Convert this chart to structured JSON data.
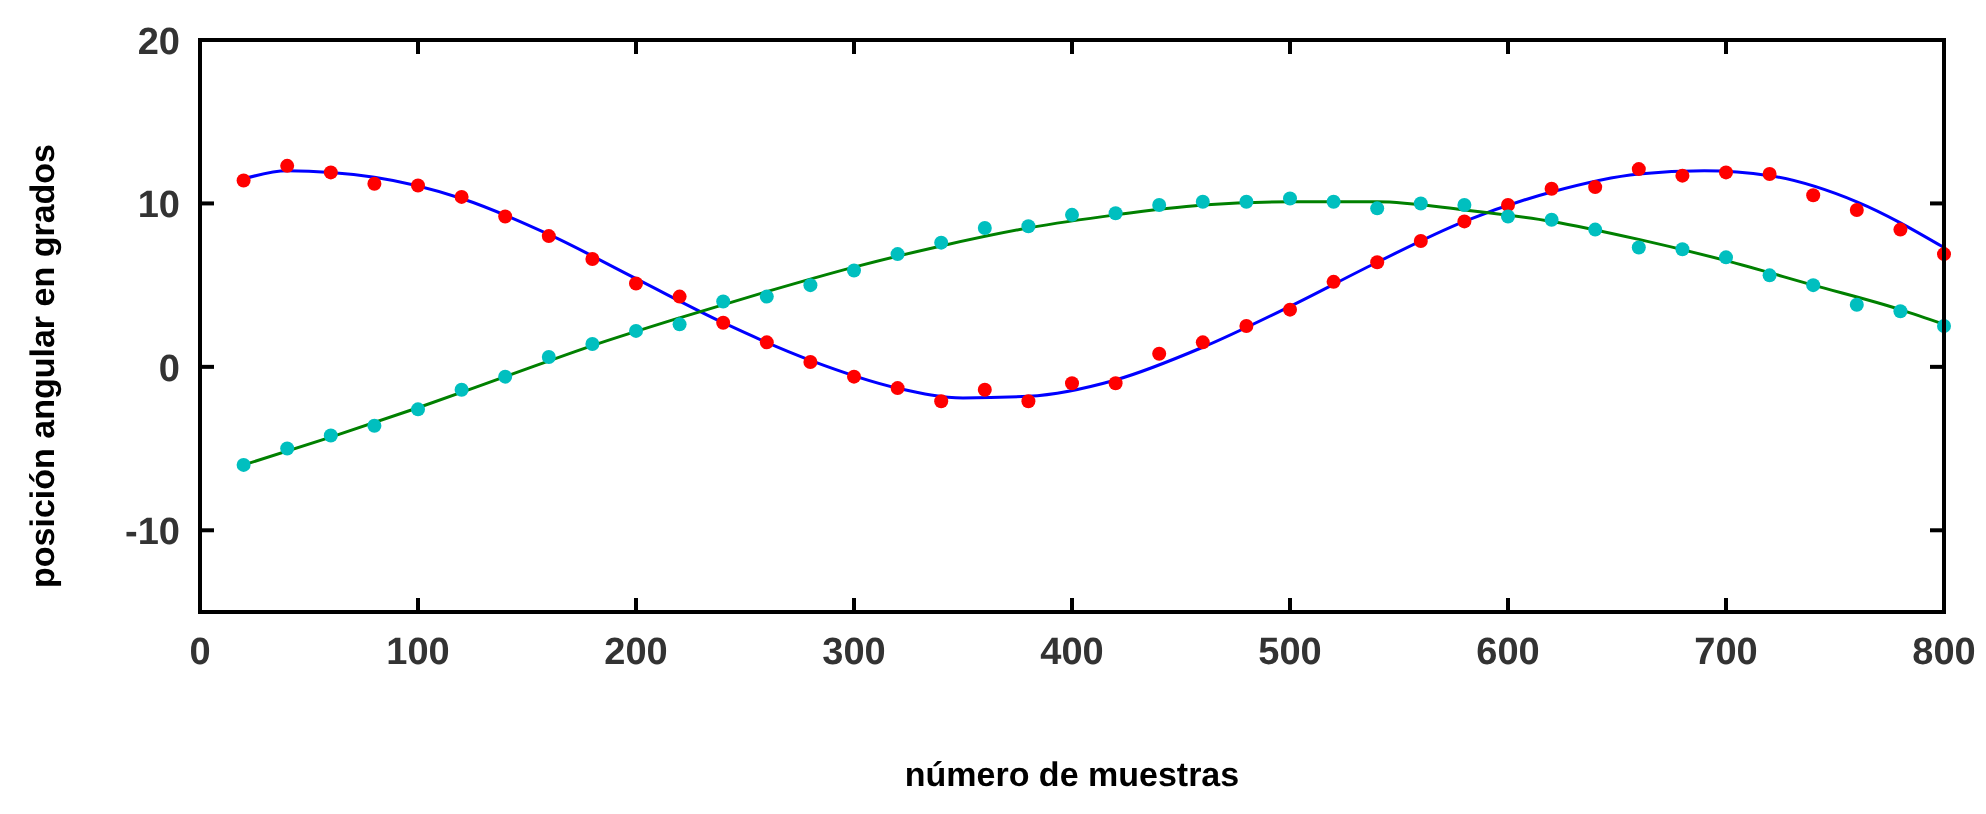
{
  "chart_data": {
    "type": "scatter",
    "xlabel": "número de muestras",
    "ylabel": "posición angular en grados",
    "xlim": [
      0,
      800
    ],
    "ylim": [
      -15,
      20
    ],
    "xticks": [
      0,
      100,
      200,
      300,
      400,
      500,
      600,
      700,
      800
    ],
    "yticks": [
      -10,
      0,
      10,
      20
    ],
    "grid": false,
    "series": [
      {
        "type": "line",
        "color": "#0000ff",
        "marker": "none",
        "x": [
          20,
          40,
          80,
          120,
          160,
          200,
          240,
          280,
          320,
          350,
          380,
          420,
          460,
          500,
          540,
          580,
          620,
          660,
          690,
          720,
          760,
          800
        ],
        "values": [
          11.5,
          12,
          11.6,
          10.3,
          8.1,
          5.4,
          2.7,
          0.4,
          -1.3,
          -1.9,
          -1.8,
          -0.8,
          1.2,
          3.7,
          6.4,
          8.9,
          10.7,
          11.8,
          12,
          11.7,
          10.1,
          7.3
        ]
      },
      {
        "type": "line",
        "color": "#008000",
        "marker": "none",
        "x": [
          20,
          60,
          100,
          140,
          180,
          220,
          260,
          300,
          340,
          380,
          420,
          460,
          500,
          540,
          580,
          620,
          660,
          700,
          740,
          780,
          800
        ],
        "values": [
          -6,
          -4.3,
          -2.5,
          -0.6,
          1.3,
          3,
          4.6,
          6.1,
          7.4,
          8.5,
          9.3,
          9.9,
          10.1,
          10.1,
          9.6,
          8.9,
          7.8,
          6.5,
          5,
          3.5,
          2.6
        ]
      },
      {
        "color": "#ff0000",
        "marker": "circle",
        "x": [
          20,
          40,
          60,
          80,
          100,
          120,
          140,
          160,
          180,
          200,
          220,
          240,
          260,
          280,
          300,
          320,
          340,
          360,
          380,
          400,
          420,
          440,
          460,
          480,
          500,
          520,
          540,
          560,
          580,
          600,
          620,
          640,
          660,
          680,
          700,
          720,
          740,
          760,
          780,
          800
        ],
        "values": [
          11.4,
          12.3,
          11.9,
          11.2,
          11.1,
          10.4,
          9.2,
          8.0,
          6.6,
          5.1,
          4.3,
          2.7,
          1.5,
          0.3,
          -0.6,
          -1.3,
          -2.1,
          -1.4,
          -2.1,
          -1.0,
          -1.0,
          0.8,
          1.5,
          2.5,
          3.5,
          5.2,
          6.4,
          7.7,
          8.9,
          9.9,
          10.9,
          11.0,
          12.1,
          11.7,
          11.9,
          11.8,
          10.5,
          9.6,
          8.4,
          6.9
        ]
      },
      {
        "color": "#00bfbf",
        "marker": "circle",
        "x": [
          20,
          40,
          60,
          80,
          100,
          120,
          140,
          160,
          180,
          200,
          220,
          240,
          260,
          280,
          300,
          320,
          340,
          360,
          380,
          400,
          420,
          440,
          460,
          480,
          500,
          520,
          540,
          560,
          580,
          600,
          620,
          640,
          660,
          680,
          700,
          720,
          740,
          760,
          780,
          800
        ],
        "values": [
          -6.0,
          -5.0,
          -4.2,
          -3.6,
          -2.6,
          -1.4,
          -0.6,
          0.6,
          1.4,
          2.2,
          2.6,
          4.0,
          4.3,
          5.0,
          5.9,
          6.9,
          7.6,
          8.5,
          8.6,
          9.3,
          9.4,
          9.9,
          10.1,
          10.1,
          10.3,
          10.1,
          9.7,
          10.0,
          9.9,
          9.2,
          9.0,
          8.4,
          7.3,
          7.2,
          6.7,
          5.6,
          5.0,
          3.8,
          3.4,
          2.5
        ]
      }
    ]
  }
}
